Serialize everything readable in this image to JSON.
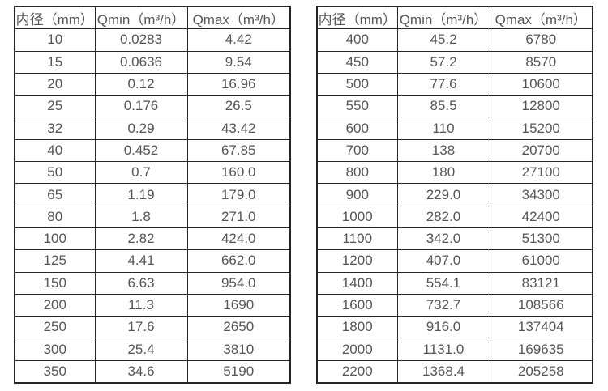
{
  "style": {
    "border_color": "#262626",
    "text_color": "#555555",
    "background": "#ffffff"
  },
  "tables": [
    {
      "name": "flow-table-small-diameters",
      "headers": [
        "内径（mm）",
        "Qmin（m³/h）",
        "Qmax（m³/h）"
      ],
      "rows": [
        [
          "10",
          "0.0283",
          "4.42"
        ],
        [
          "15",
          "0.0636",
          "9.54"
        ],
        [
          "20",
          "0.12",
          "16.96"
        ],
        [
          "25",
          "0.176",
          "26.5"
        ],
        [
          "32",
          "0.29",
          "43.42"
        ],
        [
          "40",
          "0.452",
          "67.85"
        ],
        [
          "50",
          "0.7",
          "160.0"
        ],
        [
          "65",
          "1.19",
          "179.0"
        ],
        [
          "80",
          "1.8",
          "271.0"
        ],
        [
          "100",
          "2.82",
          "424.0"
        ],
        [
          "125",
          "4.41",
          "662.0"
        ],
        [
          "150",
          "6.63",
          "954.0"
        ],
        [
          "200",
          "11.3",
          "1690"
        ],
        [
          "250",
          "17.6",
          "2650"
        ],
        [
          "300",
          "25.4",
          "3810"
        ],
        [
          "350",
          "34.6",
          "5190"
        ]
      ]
    },
    {
      "name": "flow-table-large-diameters",
      "headers": [
        "内径（mm）",
        "Qmin（m³/h）",
        "Qmax（m³/h）"
      ],
      "rows": [
        [
          "400",
          "45.2",
          "6780"
        ],
        [
          "450",
          "57.2",
          "8570"
        ],
        [
          "500",
          "77.6",
          "10600"
        ],
        [
          "550",
          "85.5",
          "12800"
        ],
        [
          "600",
          "110",
          "15200"
        ],
        [
          "700",
          "138",
          "20700"
        ],
        [
          "800",
          "180",
          "27100"
        ],
        [
          "900",
          "229.0",
          "34300"
        ],
        [
          "1000",
          "282.0",
          "42400"
        ],
        [
          "1100",
          "342.0",
          "51300"
        ],
        [
          "1200",
          "407.0",
          "61000"
        ],
        [
          "1400",
          "554.1",
          "83121"
        ],
        [
          "1600",
          "732.7",
          "108566"
        ],
        [
          "1800",
          "916.0",
          "137404"
        ],
        [
          "2000",
          "1131.0",
          "169635"
        ],
        [
          "2200",
          "1368.4",
          "205258"
        ]
      ]
    }
  ]
}
